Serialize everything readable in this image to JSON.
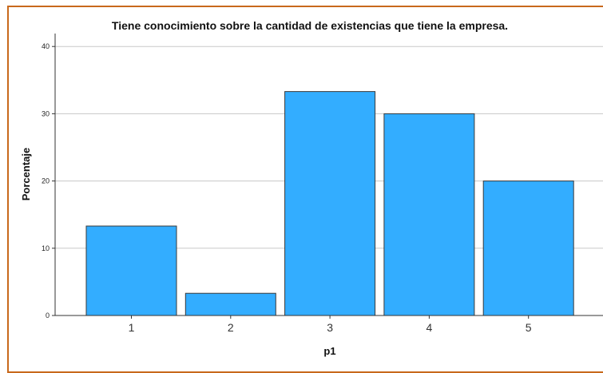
{
  "chart_data": {
    "type": "bar",
    "title": "Tiene conocimiento sobre la cantidad de existencias que tiene la empresa.",
    "xlabel": "p1",
    "ylabel": "Porcentaje",
    "categories": [
      "1",
      "2",
      "3",
      "4",
      "5"
    ],
    "values": [
      13.3,
      3.3,
      33.3,
      30.0,
      20.0
    ],
    "ylim": [
      0,
      42
    ],
    "yticks": [
      0,
      10,
      20,
      30,
      40
    ],
    "grid": true,
    "bar_color": "#33adff",
    "bar_edge_color": "#3a3a3a",
    "grid_color": "#c8c8c8",
    "frame_color": "#c8691c"
  }
}
